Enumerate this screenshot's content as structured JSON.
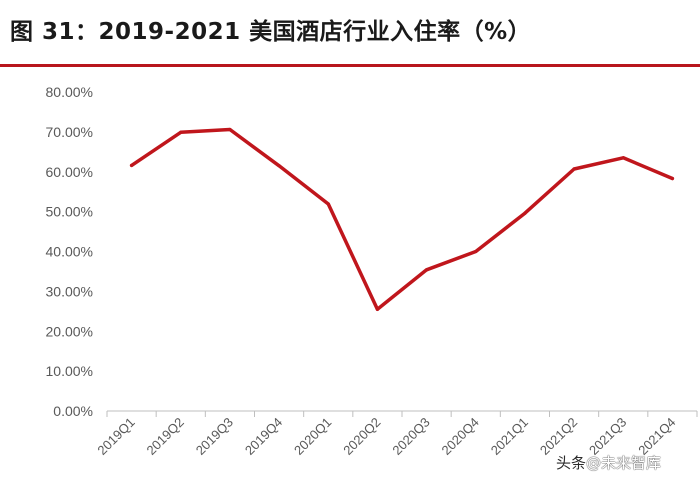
{
  "title": "图 31：2019-2021 美国酒店行业入住率（%）",
  "watermark": {
    "prefix": "头条",
    "brand": "@未来智库"
  },
  "chart_data": {
    "type": "line",
    "title": "图 31：2019-2021 美国酒店行业入住率（%）",
    "xlabel": "",
    "ylabel": "",
    "ylim": [
      0,
      80
    ],
    "yticks": [
      "0.00%",
      "10.00%",
      "20.00%",
      "30.00%",
      "40.00%",
      "50.00%",
      "60.00%",
      "70.00%",
      "80.00%"
    ],
    "categories": [
      "2019Q1",
      "2019Q2",
      "2019Q3",
      "2019Q4",
      "2020Q1",
      "2020Q2",
      "2020Q3",
      "2020Q4",
      "2021Q1",
      "2021Q2",
      "2021Q3",
      "2021Q4"
    ],
    "series": [
      {
        "name": "",
        "values": [
          61.6,
          69.9,
          70.6,
          61.5,
          51.9,
          25.5,
          35.4,
          40.0,
          49.6,
          60.7,
          63.5,
          58.3
        ]
      }
    ],
    "grid": false,
    "legend": "none",
    "line_color": "#c0161c",
    "axis_color": "#bfbfbf"
  }
}
